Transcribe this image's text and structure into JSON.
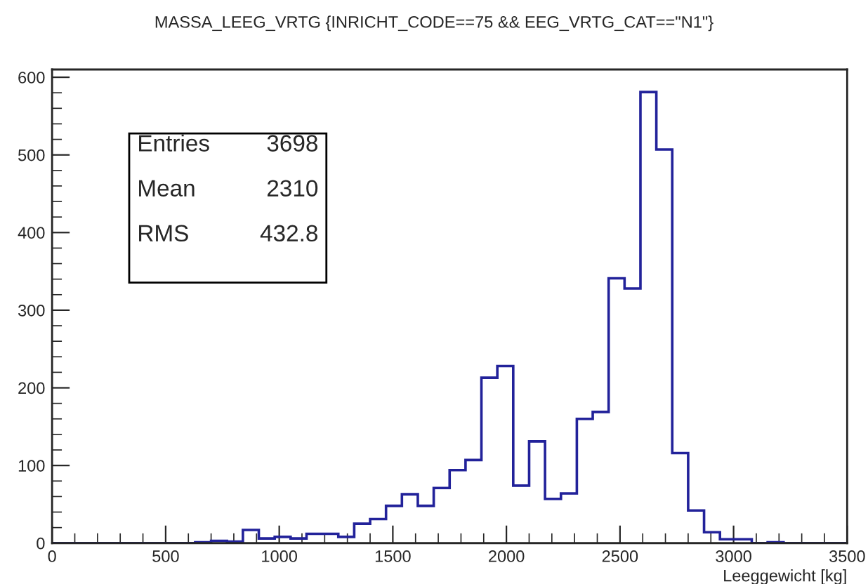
{
  "chart_data": {
    "type": "histogram",
    "title": "MASSA_LEEG_VRTG {INRICHT_CODE==75 && EEG_VRTG_CAT==\"N1\"}",
    "xlabel": "Leeggewicht [kg]",
    "bins": [
      0,
      70,
      140,
      210,
      280,
      350,
      420,
      490,
      560,
      630,
      700,
      770,
      840,
      910,
      980,
      1050,
      1120,
      1190,
      1260,
      1330,
      1400,
      1470,
      1540,
      1610,
      1680,
      1750,
      1820,
      1890,
      1960,
      2030,
      2100,
      2170,
      2240,
      2310,
      2380,
      2450,
      2520,
      2590,
      2660,
      2730,
      2800,
      2870,
      2940,
      3010,
      3080,
      3150,
      3220,
      3290,
      3360,
      3430,
      3500
    ],
    "values": [
      0,
      0,
      0,
      0,
      0,
      0,
      0,
      0,
      0,
      1,
      3,
      2,
      17,
      6,
      8,
      6,
      12,
      12,
      8,
      25,
      31,
      48,
      63,
      48,
      71,
      94,
      107,
      213,
      228,
      74,
      131,
      57,
      64,
      160,
      169,
      341,
      328,
      581,
      507,
      116,
      42,
      14,
      5,
      5,
      0,
      1,
      0,
      0,
      0,
      0
    ],
    "color": "#22229a",
    "xlim": [
      0,
      3500
    ],
    "xticks": [
      0,
      500,
      1000,
      1500,
      2000,
      2500,
      3000,
      3500
    ],
    "ylim": [
      0,
      610
    ],
    "yticks": [
      0,
      100,
      200,
      300,
      400,
      500,
      600
    ],
    "annotations": [
      "Entries",
      "3698",
      "Mean",
      "2310",
      "RMS",
      "432.8"
    ],
    "grid": false,
    "legend": false
  }
}
